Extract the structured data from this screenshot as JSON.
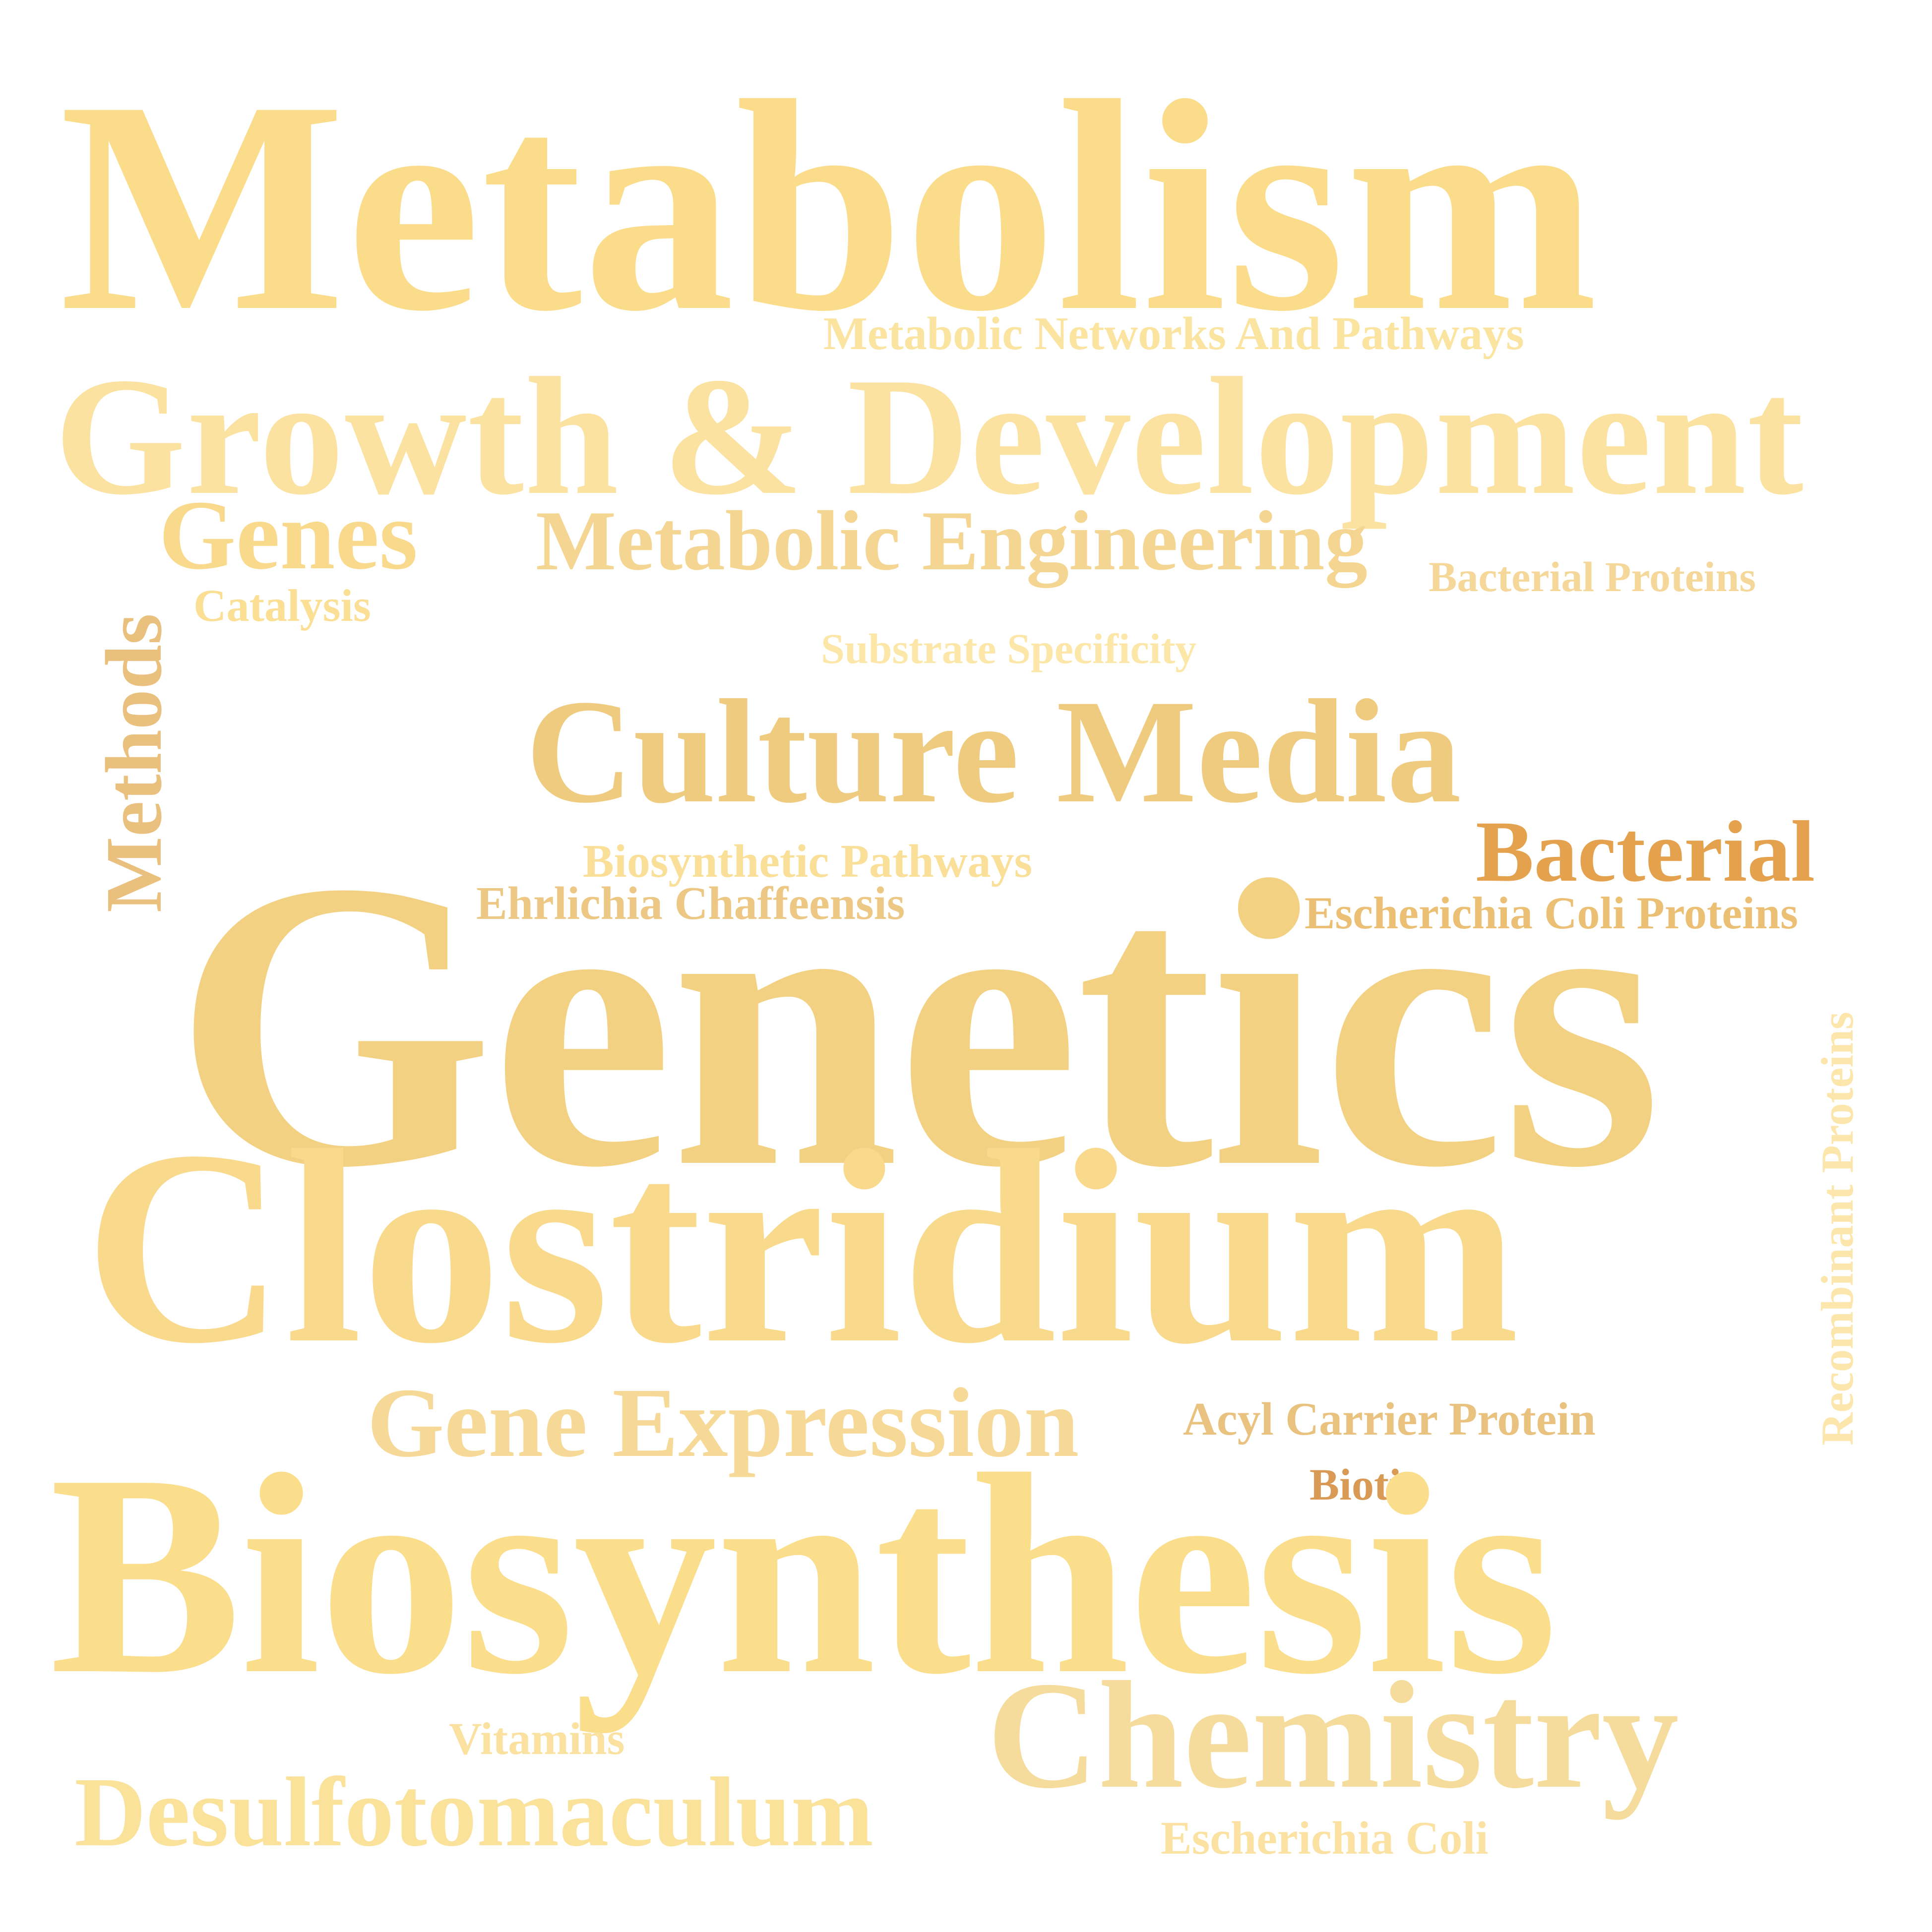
{
  "words": [
    {
      "key": "metabolism",
      "text": "Metabolism",
      "color": "#FADC8A"
    },
    {
      "key": "mnp",
      "text": "Metabolic Networks And Pathways",
      "color": "#FBE3A0"
    },
    {
      "key": "growth",
      "text": "Growth & Development",
      "color": "#FBE2A0"
    },
    {
      "key": "genes",
      "text": "Genes",
      "color": "#F9DA8C"
    },
    {
      "key": "meteng",
      "text": "Metabolic Engineering",
      "color": "#F4D591"
    },
    {
      "key": "bactprot",
      "text": "Bacterial Proteins",
      "color": "#F6D79A"
    },
    {
      "key": "catalysis",
      "text": "Catalysis",
      "color": "#FADF94"
    },
    {
      "key": "methods",
      "text": "Methods",
      "color": "#E9C07E"
    },
    {
      "key": "substrate",
      "text": "Substrate Specificity",
      "color": "#FCE6A8"
    },
    {
      "key": "culture",
      "text": "Culture Media",
      "color": "#EFCB80"
    },
    {
      "key": "bacterial",
      "text": "Bacterial",
      "color": "#E4A24E"
    },
    {
      "key": "biopath",
      "text": "Biosynthetic Pathways",
      "color": "#FADF99"
    },
    {
      "key": "ehrlichia",
      "text": "Ehrlichia Chaffeensis",
      "color": "#EDC784"
    },
    {
      "key": "ecp",
      "text": "Escherichia Coli Proteins",
      "color": "#EBBF74"
    },
    {
      "key": "genetics",
      "text": "Genetics",
      "color": "#F3D183"
    },
    {
      "key": "recombinant",
      "text": "Recombinant Proteins",
      "color": "#FCE6AB"
    },
    {
      "key": "clostridium",
      "text": "Clostridium",
      "color": "#F9DA8C"
    },
    {
      "key": "acyl",
      "text": "Acyl Carrier Protein",
      "color": "#E9C27F"
    },
    {
      "key": "geneexp",
      "text": "Gene Expression",
      "color": "#F6D996"
    },
    {
      "key": "biotin",
      "text": "Biotin",
      "color": "#D99A55"
    },
    {
      "key": "biosynthesis",
      "text": "Biosynthesis",
      "color": "#FADE8C"
    },
    {
      "key": "vitamins",
      "text": "Vitamins",
      "color": "#FBE1A0"
    },
    {
      "key": "chemistry",
      "text": "Chemistry",
      "color": "#F6DC9C"
    },
    {
      "key": "desulfo",
      "text": "Desulfotomaculum",
      "color": "#FBE29A"
    },
    {
      "key": "ecoli",
      "text": "Escherichia Coli",
      "color": "#FBE2A2"
    }
  ]
}
